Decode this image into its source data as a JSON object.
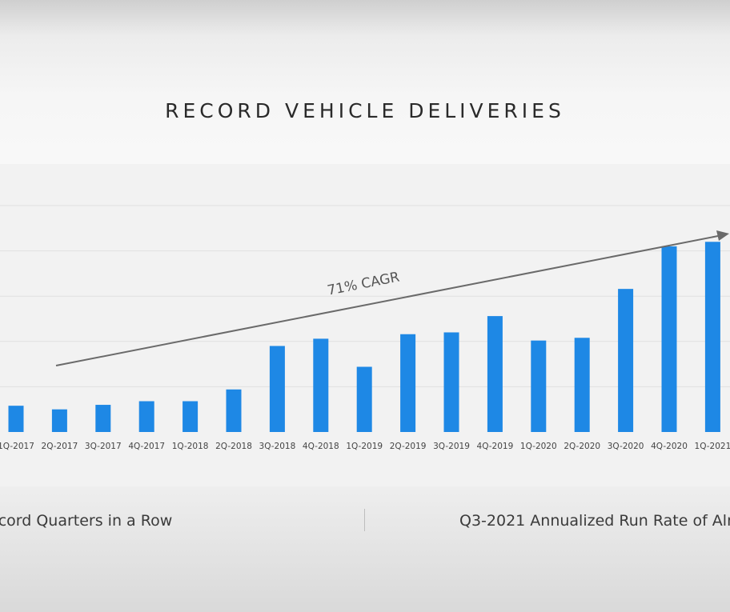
{
  "title": "RECORD VEHICLE DELIVERIES",
  "annotation": {
    "label": "71% CAGR"
  },
  "chart_data": {
    "type": "bar",
    "title": "RECORD VEHICLE DELIVERIES",
    "xlabel": "",
    "ylabel": "",
    "categories": [
      "1Q-2017",
      "2Q-2017",
      "3Q-2017",
      "4Q-2017",
      "1Q-2018",
      "2Q-2018",
      "3Q-2018",
      "4Q-2018",
      "1Q-2019",
      "2Q-2019",
      "3Q-2019",
      "4Q-2019",
      "1Q-2020",
      "2Q-2020",
      "3Q-2020",
      "4Q-2020",
      "1Q-2021"
    ],
    "values": [
      29,
      25,
      30,
      34,
      34,
      47,
      95,
      103,
      72,
      108,
      110,
      128,
      101,
      104,
      158,
      205,
      210
    ],
    "ylim": [
      0,
      250
    ],
    "grid": true,
    "color": "#1e88e5",
    "annotations": [
      {
        "text": "71% CAGR"
      }
    ]
  },
  "stats": {
    "left": "ecord Quarters in a Row",
    "right": "Q3-2021 Annualized Run Rate of Alm"
  }
}
